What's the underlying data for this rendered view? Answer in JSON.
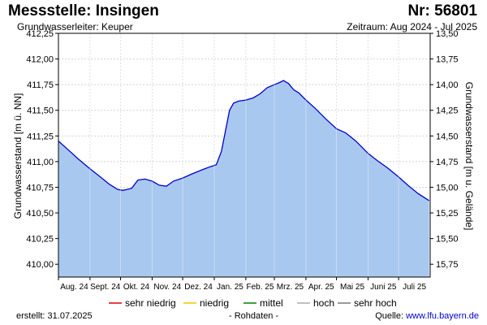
{
  "header": {
    "title": "Messstelle: Insingen",
    "station_nr": "Nr: 56801",
    "aquifer": "Grundwasserleiter: Keuper",
    "period": "Zeitraum: Aug 2024 - Jul 2025"
  },
  "footer": {
    "created_label": "erstellt:",
    "created_date": "31.07.2025",
    "raw_note": "- Rohdaten -",
    "source_label": "Quelle:",
    "source_link": "www.lfu.bayern.de"
  },
  "colors": {
    "line": "#0000cc",
    "area": "#a9c8ef",
    "grid": "#d2d2d2",
    "sehr_niedrig": "#e00000",
    "niedrig": "#f0c800",
    "mittel": "#008000",
    "hoch": "#aaaaaa",
    "sehr_hoch": "#777777"
  },
  "chart_data": {
    "type": "area",
    "title": "",
    "xlabel": "",
    "ylabel": "Grundwasserstand [m ü. NN]",
    "ylabel_right": "Grundwasserstand [m u. Gelände]",
    "ylim": [
      409.875,
      412.25
    ],
    "ylim_right": [
      15.875,
      13.5
    ],
    "grid": true,
    "yticks_left": [
      "412,25",
      "412,00",
      "411,75",
      "411,50",
      "411,25",
      "411,00",
      "410,75",
      "410,50",
      "410,25",
      "410,00"
    ],
    "yticks_right": [
      "13,50",
      "13,75",
      "14,00",
      "14,25",
      "14,50",
      "14,75",
      "15,00",
      "15,25",
      "15,50",
      "15,75"
    ],
    "xticks": [
      "Aug. 24",
      "Sept. 24",
      "Okt. 24",
      "Nov. 24",
      "Dez. 24",
      "Jan. 25",
      "Feb. 25",
      "Mrz. 25",
      "Apr. 25",
      "Mai 25",
      "Juni 25",
      "Juli 25"
    ],
    "x": [
      "2024-08-01",
      "2024-08-10",
      "2024-08-20",
      "2024-09-01",
      "2024-09-10",
      "2024-09-20",
      "2024-09-28",
      "2024-10-03",
      "2024-10-08",
      "2024-10-12",
      "2024-10-18",
      "2024-10-25",
      "2024-11-01",
      "2024-11-08",
      "2024-11-15",
      "2024-11-22",
      "2024-12-01",
      "2024-12-10",
      "2024-12-20",
      "2024-12-28",
      "2025-01-03",
      "2025-01-08",
      "2025-01-12",
      "2025-01-16",
      "2025-01-20",
      "2025-01-25",
      "2025-02-01",
      "2025-02-08",
      "2025-02-15",
      "2025-02-22",
      "2025-03-01",
      "2025-03-06",
      "2025-03-10",
      "2025-03-15",
      "2025-03-20",
      "2025-03-25",
      "2025-04-01",
      "2025-04-10",
      "2025-04-20",
      "2025-05-01",
      "2025-05-10",
      "2025-05-20",
      "2025-06-01",
      "2025-06-10",
      "2025-06-20",
      "2025-07-01",
      "2025-07-10",
      "2025-07-20",
      "2025-07-31"
    ],
    "series": [
      {
        "values": [
          411.2,
          411.12,
          411.03,
          410.93,
          410.86,
          410.78,
          410.73,
          410.72,
          410.73,
          410.74,
          410.82,
          410.83,
          410.81,
          410.77,
          410.76,
          410.81,
          410.84,
          410.88,
          410.92,
          410.95,
          410.97,
          411.1,
          411.3,
          411.5,
          411.57,
          411.59,
          411.6,
          411.62,
          411.66,
          411.72,
          411.75,
          411.77,
          411.79,
          411.76,
          411.7,
          411.67,
          411.6,
          411.52,
          411.42,
          411.32,
          411.28,
          411.2,
          411.08,
          411.01,
          410.94,
          410.85,
          410.77,
          410.69,
          410.62
        ]
      }
    ],
    "legend": {
      "placement": "bottom",
      "entries": [
        {
          "label": "sehr niedrig",
          "color_key": "sehr_niedrig"
        },
        {
          "label": "niedrig",
          "color_key": "niedrig"
        },
        {
          "label": "mittel",
          "color_key": "mittel"
        },
        {
          "label": "hoch",
          "color_key": "hoch"
        },
        {
          "label": "sehr hoch",
          "color_key": "sehr_hoch"
        }
      ]
    }
  }
}
